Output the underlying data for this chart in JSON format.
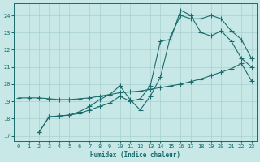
{
  "bg_color": "#c8e8e8",
  "grid_color": "#a8d0d0",
  "line_color": "#1a6b6b",
  "xlabel": "Humidex (Indice chaleur)",
  "ylim": [
    16.7,
    24.7
  ],
  "xlim": [
    -0.5,
    23.5
  ],
  "yticks": [
    17,
    18,
    19,
    20,
    21,
    22,
    23,
    24
  ],
  "xticks": [
    0,
    1,
    2,
    3,
    4,
    5,
    6,
    7,
    8,
    9,
    10,
    11,
    12,
    13,
    14,
    15,
    16,
    17,
    18,
    19,
    20,
    21,
    22,
    23
  ],
  "line1_x": [
    0,
    1,
    2,
    3,
    4,
    5,
    6,
    7,
    8,
    9,
    10,
    11,
    12,
    13,
    14,
    15,
    16,
    17,
    18,
    19,
    20,
    21,
    22,
    23
  ],
  "line1_y": [
    19.2,
    19.2,
    19.2,
    19.15,
    19.1,
    19.1,
    19.15,
    19.2,
    19.3,
    19.4,
    19.5,
    19.55,
    19.6,
    19.7,
    19.8,
    19.9,
    20.0,
    20.15,
    20.3,
    20.5,
    20.7,
    20.9,
    21.2,
    20.2
  ],
  "line2_x": [
    2,
    3,
    4,
    5,
    6,
    7,
    8,
    9,
    10,
    11,
    12,
    13,
    14,
    15,
    16,
    17,
    18,
    19,
    20,
    21,
    22,
    23
  ],
  "line2_y": [
    17.2,
    18.1,
    18.15,
    18.2,
    18.3,
    18.5,
    18.7,
    18.9,
    19.3,
    19.0,
    19.15,
    19.9,
    22.5,
    22.6,
    24.3,
    24.0,
    23.0,
    22.8,
    23.1,
    22.5,
    21.5,
    21.0
  ],
  "line3_x": [
    2,
    3,
    4,
    5,
    6,
    7,
    8,
    9,
    10,
    11,
    12,
    13,
    14,
    15,
    16,
    17,
    18,
    19,
    20,
    21,
    22,
    23
  ],
  "line3_y": [
    17.2,
    18.1,
    18.15,
    18.2,
    18.4,
    18.7,
    19.1,
    19.4,
    19.9,
    19.1,
    18.5,
    19.3,
    20.4,
    22.8,
    24.0,
    23.8,
    23.8,
    24.0,
    23.8,
    23.1,
    22.6,
    21.5
  ]
}
